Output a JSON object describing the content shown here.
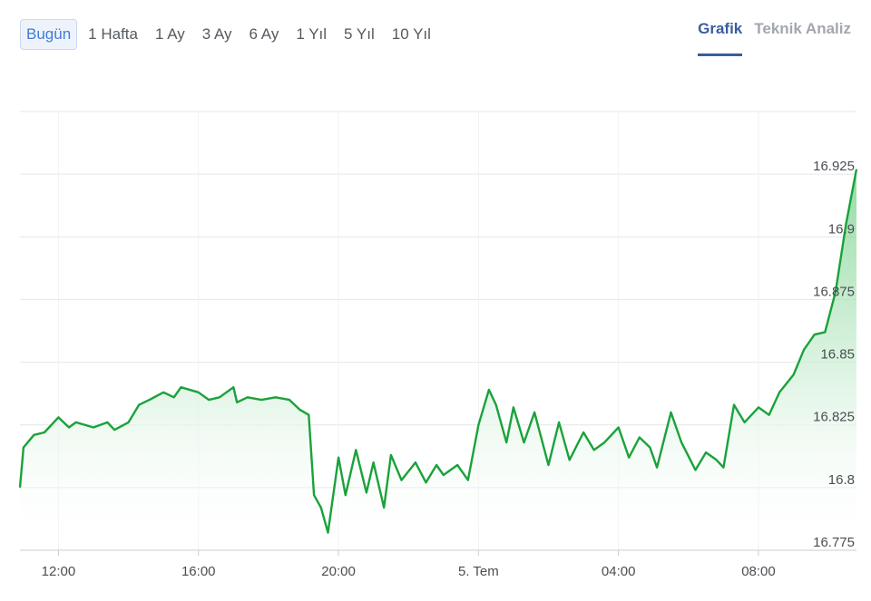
{
  "range_tabs": [
    {
      "label": "Bugün",
      "active": true
    },
    {
      "label": "1 Hafta",
      "active": false
    },
    {
      "label": "1 Ay",
      "active": false
    },
    {
      "label": "3 Ay",
      "active": false
    },
    {
      "label": "6 Ay",
      "active": false
    },
    {
      "label": "1 Yıl",
      "active": false
    },
    {
      "label": "5 Yıl",
      "active": false
    },
    {
      "label": "10 Yıl",
      "active": false
    }
  ],
  "view_tabs": [
    {
      "label": "Grafik",
      "active": true
    },
    {
      "label": "Teknik Analiz",
      "active": false
    }
  ],
  "colors": {
    "line": "#1aa23a",
    "area_top": "#6fcf84",
    "grid": "#e4e6e9",
    "accent": "#3b5c9f"
  },
  "chart_data": {
    "type": "area",
    "title": "",
    "xlabel": "",
    "ylabel": "",
    "grid": true,
    "x_ticks": [
      "12:00",
      "16:00",
      "20:00",
      "5. Tem",
      "04:00",
      "08:00"
    ],
    "x_tick_hours": [
      12,
      16,
      20,
      24,
      28,
      32
    ],
    "y_ticks": [
      "16.775",
      "16.8",
      "16.825",
      "16.85",
      "16.875",
      "16.9",
      "16.925"
    ],
    "y_tick_values": [
      16.775,
      16.8,
      16.825,
      16.85,
      16.875,
      16.9,
      16.925
    ],
    "ylim": [
      16.775,
      16.95
    ],
    "xlim": [
      10.9,
      34.8
    ],
    "series": [
      {
        "x_hours": [
          10.9,
          11.0,
          11.3,
          11.6,
          12.0,
          12.3,
          12.5,
          13.0,
          13.4,
          13.6,
          14.0,
          14.3,
          14.6,
          15.0,
          15.3,
          15.5,
          16.0,
          16.3,
          16.6,
          17.0,
          17.1,
          17.4,
          17.8,
          18.2,
          18.6,
          18.9,
          19.15,
          19.3,
          19.5,
          19.7,
          20.0,
          20.2,
          20.5,
          20.8,
          21.0,
          21.3,
          21.5,
          21.8,
          22.2,
          22.5,
          22.8,
          23.0,
          23.4,
          23.7,
          24.0,
          24.3,
          24.5,
          24.8,
          25.0,
          25.3,
          25.6,
          26.0,
          26.3,
          26.6,
          27.0,
          27.3,
          27.6,
          28.0,
          28.3,
          28.6,
          28.9,
          29.1,
          29.5,
          29.8,
          30.2,
          30.5,
          30.8,
          31.0,
          31.3,
          31.6,
          32.0,
          32.3,
          32.6,
          33.0,
          33.3,
          33.6,
          33.9,
          34.2,
          34.5,
          34.8
        ],
        "values": [
          16.8,
          16.816,
          16.821,
          16.822,
          16.828,
          16.824,
          16.826,
          16.824,
          16.826,
          16.823,
          16.826,
          16.833,
          16.835,
          16.838,
          16.836,
          16.84,
          16.838,
          16.835,
          16.836,
          16.84,
          16.834,
          16.836,
          16.835,
          16.836,
          16.835,
          16.831,
          16.829,
          16.797,
          16.792,
          16.782,
          16.812,
          16.797,
          16.815,
          16.798,
          16.81,
          16.792,
          16.813,
          16.803,
          16.81,
          16.802,
          16.809,
          16.805,
          16.809,
          16.803,
          16.825,
          16.839,
          16.833,
          16.818,
          16.832,
          16.818,
          16.83,
          16.809,
          16.826,
          16.811,
          16.822,
          16.815,
          16.818,
          16.824,
          16.812,
          16.82,
          16.816,
          16.808,
          16.83,
          16.818,
          16.807,
          16.814,
          16.811,
          16.808,
          16.833,
          16.826,
          16.832,
          16.829,
          16.838,
          16.845,
          16.855,
          16.861,
          16.862,
          16.878,
          16.905,
          16.927
        ]
      }
    ]
  }
}
